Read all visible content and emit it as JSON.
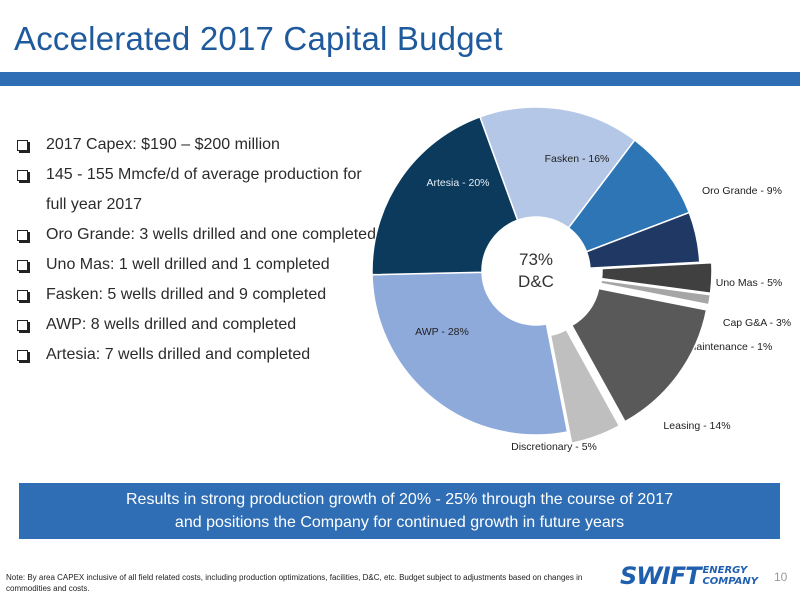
{
  "slide": {
    "title": "Accelerated 2017 Capital Budget",
    "bullets": [
      "2017 Capex: $190 – $200 million",
      "145 - 155 Mmcfe/d of average production for full year 2017",
      "Oro Grande: 3 wells drilled and one completed",
      "Uno Mas: 1 well drilled and 1 completed",
      "Fasken: 5 wells drilled and 9 completed",
      "AWP: 8 wells drilled and completed",
      "Artesia: 7 wells drilled and completed"
    ],
    "banner_line1": "Results in strong production growth of 20% - 25% through the course of 2017",
    "banner_line2": "and positions the Company for continued growth in future years",
    "footnote": "Note: By area CAPEX inclusive of all field related costs, including production optimizations, facilities, D&C, etc. Budget subject to adjustments based on changes in commodities and costs.",
    "logo_word": "SWIFT",
    "logo_sub1": "ENERGY",
    "logo_sub2": "COMPANY",
    "page_number": "10"
  },
  "chart_data": {
    "type": "pie",
    "donut": true,
    "center_label_line1": "73%",
    "center_label_line2": "D&C",
    "slices": [
      {
        "label": "Fasken - 16%",
        "value": 16,
        "color": "#b4c7e7",
        "exploded": false
      },
      {
        "label": "Oro Grande - 9%",
        "value": 9,
        "color": "#2e75b6",
        "exploded": false
      },
      {
        "label": "Uno Mas - 5%",
        "value": 5,
        "color": "#1f3864",
        "exploded": false
      },
      {
        "label": "Cap G&A - 3%",
        "value": 3,
        "color": "#404040",
        "exploded": true
      },
      {
        "label": "Maintenance - 1%",
        "value": 1,
        "color": "#a6a6a6",
        "exploded": true
      },
      {
        "label": "Leasing - 14%",
        "value": 14,
        "color": "#595959",
        "exploded": true
      },
      {
        "label": "Discretionary - 5%",
        "value": 5,
        "color": "#bfbfbf",
        "exploded": true
      },
      {
        "label": "AWP - 28%",
        "value": 28,
        "color": "#8eaadb",
        "exploded": false
      },
      {
        "label": "Artesia - 20%",
        "value": 20,
        "color": "#0b3a5c",
        "exploded": false
      }
    ]
  }
}
